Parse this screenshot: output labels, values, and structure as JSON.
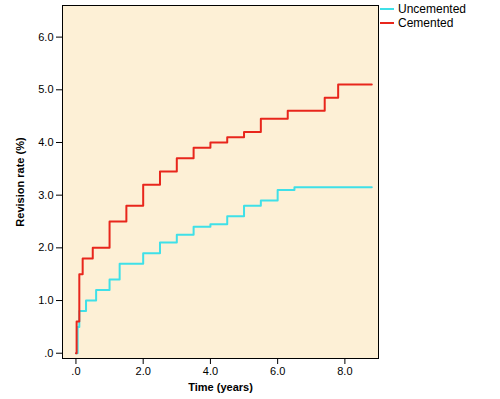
{
  "chart_data": {
    "type": "line",
    "line_style": "step",
    "x_label": "Time (years)",
    "y_label": "Revision rate (%)",
    "xlim": [
      -0.4,
      9.0
    ],
    "ylim": [
      -0.1,
      6.6
    ],
    "xticks": [
      {
        "value": 0,
        "label": ".0"
      },
      {
        "value": 2,
        "label": "2.0"
      },
      {
        "value": 4,
        "label": "4.0"
      },
      {
        "value": 6,
        "label": "6.0"
      },
      {
        "value": 8,
        "label": "8.0"
      }
    ],
    "yticks": [
      {
        "value": 0,
        "label": ".0"
      },
      {
        "value": 1,
        "label": "1.0"
      },
      {
        "value": 2,
        "label": "2.0"
      },
      {
        "value": 3,
        "label": "3.0"
      },
      {
        "value": 4,
        "label": "4.0"
      },
      {
        "value": 5,
        "label": "5.0"
      },
      {
        "value": 6,
        "label": "6.0"
      }
    ],
    "legend": "top-right",
    "series": [
      {
        "name": "Uncemented",
        "color": "#3fe0e8",
        "x": [
          0,
          0.05,
          0.1,
          0.3,
          0.6,
          1.0,
          1.3,
          2.0,
          2.5,
          3.0,
          3.5,
          4.0,
          4.5,
          5.0,
          5.5,
          6.0,
          6.5,
          8.8
        ],
        "values": [
          0,
          0.5,
          0.8,
          1.0,
          1.2,
          1.4,
          1.7,
          1.9,
          2.1,
          2.25,
          2.4,
          2.45,
          2.6,
          2.8,
          2.9,
          3.1,
          3.15,
          3.15
        ]
      },
      {
        "name": "Cemented",
        "color": "#e8261c",
        "x": [
          0,
          0.02,
          0.1,
          0.2,
          0.5,
          1.0,
          1.5,
          2.0,
          2.5,
          3.0,
          3.5,
          4.0,
          4.5,
          5.0,
          5.5,
          6.3,
          7.4,
          7.8,
          8.8
        ],
        "values": [
          0,
          0.6,
          1.5,
          1.8,
          2.0,
          2.5,
          2.8,
          3.2,
          3.45,
          3.7,
          3.9,
          4.0,
          4.1,
          4.2,
          4.45,
          4.6,
          4.85,
          5.1,
          5.1
        ]
      }
    ]
  }
}
